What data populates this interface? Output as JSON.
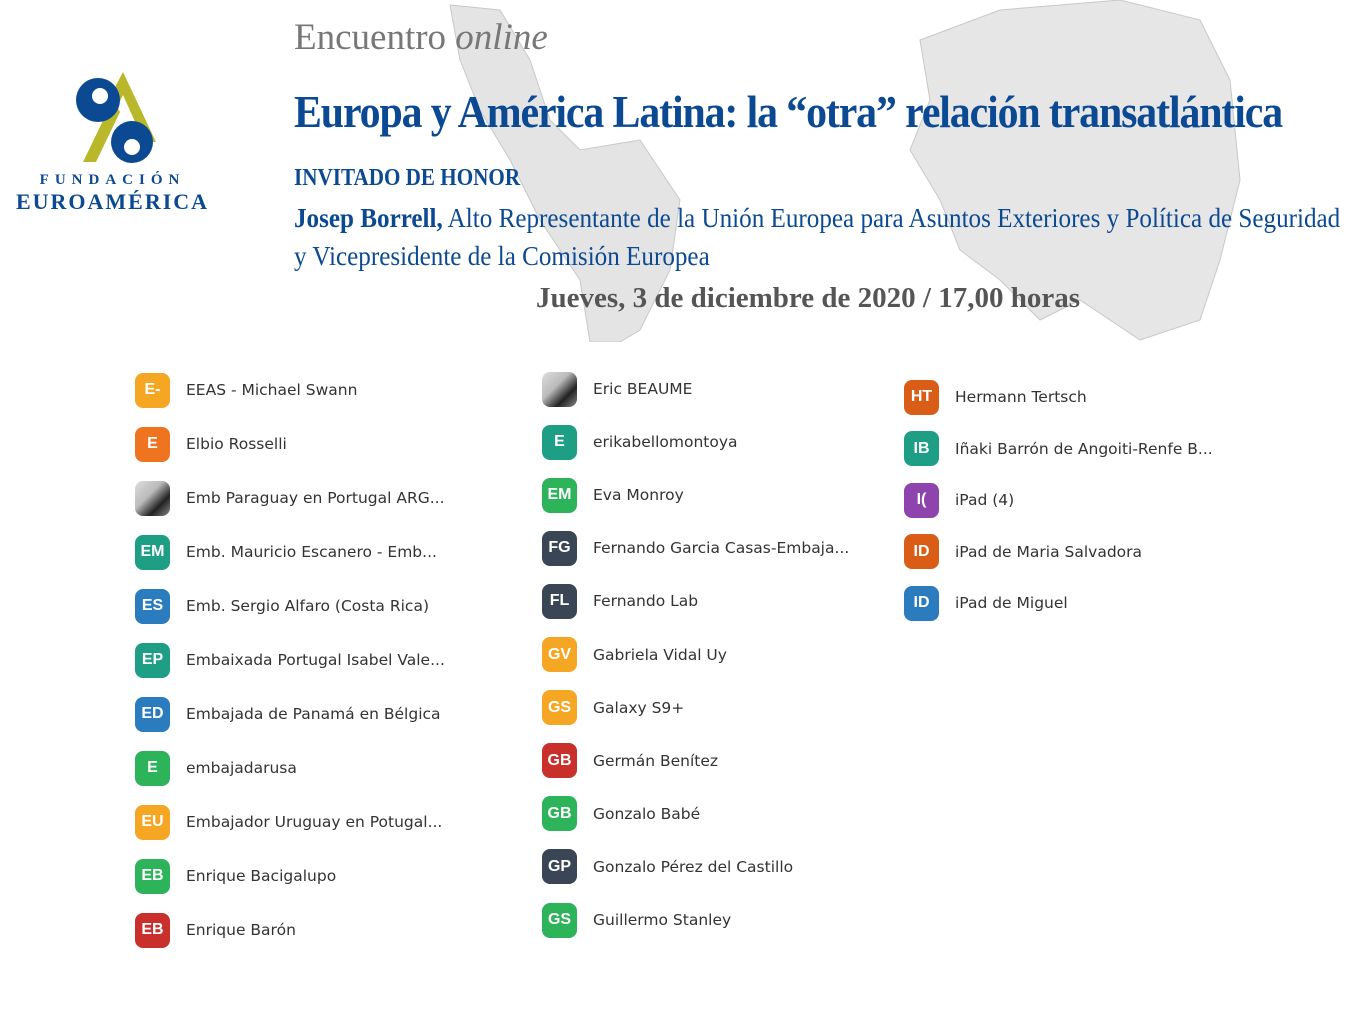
{
  "logo": {
    "line1": "FUNDACIÓN",
    "line2": "EUROAMÉRICA",
    "colors": {
      "blue": "#0b4a92",
      "olive": "#b8b82a"
    }
  },
  "header": {
    "event_type": "Encuentro",
    "event_mode": "online",
    "title": "Europa y América Latina: la “otra” relación transatlántica",
    "guest_label": "INVITADO DE HONOR",
    "guest_name": "Josep Borrell,",
    "guest_role": " Alto Representante de la Unión Europea para Asuntos Exteriores y Política de Seguridad y Vicepresidente de la Comisión Europea",
    "date": "Jueves, 3 de diciembre de 2020  /  17,00 horas"
  },
  "participants": [
    [
      {
        "initials": "E-",
        "name": "EEAS - Michael Swann",
        "color": "#f5a623"
      },
      {
        "initials": "E",
        "name": "Elbio Rosselli",
        "color": "#ee7420"
      },
      {
        "initials": "",
        "name": "Emb Paraguay en Portugal ARG...",
        "color": "photo"
      },
      {
        "initials": "EM",
        "name": "Emb. Mauricio Escanero - Emb...",
        "color": "#1f9e86"
      },
      {
        "initials": "ES",
        "name": "Emb. Sergio Alfaro (Costa Rica)",
        "color": "#2b7bbf"
      },
      {
        "initials": "EP",
        "name": "Embaixada Portugal Isabel Vale...",
        "color": "#1f9e86"
      },
      {
        "initials": "ED",
        "name": "Embajada de Panamá en Bélgica",
        "color": "#2b7bbf"
      },
      {
        "initials": "E",
        "name": "embajadarusa",
        "color": "#2db35a"
      },
      {
        "initials": "EU",
        "name": "Embajador Uruguay en Potugal...",
        "color": "#f5a623"
      },
      {
        "initials": "EB",
        "name": "Enrique Bacigalupo",
        "color": "#2db35a"
      },
      {
        "initials": "EB",
        "name": "Enrique Barón",
        "color": "#c9302c"
      }
    ],
    [
      {
        "initials": "",
        "name": "Eric BEAUME",
        "color": "photo"
      },
      {
        "initials": "E",
        "name": "erikabellomontoya",
        "color": "#1f9e86"
      },
      {
        "initials": "EM",
        "name": "Eva Monroy",
        "color": "#2db35a"
      },
      {
        "initials": "FG",
        "name": "Fernando Garcia Casas-Embaja...",
        "color": "#3a4656"
      },
      {
        "initials": "FL",
        "name": "Fernando Lab",
        "color": "#3a4656"
      },
      {
        "initials": "GV",
        "name": "Gabriela Vidal  Uy",
        "color": "#f5a623"
      },
      {
        "initials": "GS",
        "name": "Galaxy S9+",
        "color": "#f5a623"
      },
      {
        "initials": "GB",
        "name": "Germán Benítez",
        "color": "#c9302c"
      },
      {
        "initials": "GB",
        "name": "Gonzalo Babé",
        "color": "#2db35a"
      },
      {
        "initials": "GP",
        "name": "Gonzalo Pérez del Castillo",
        "color": "#3a4656"
      },
      {
        "initials": "GS",
        "name": "Guillermo Stanley",
        "color": "#2db35a"
      }
    ],
    [
      {
        "initials": "HT",
        "name": "Hermann Tertsch",
        "color": "#d95d17"
      },
      {
        "initials": "IB",
        "name": "Iñaki Barrón de Angoiti-Renfe B...",
        "color": "#1f9e86"
      },
      {
        "initials": "I(",
        "name": "iPad (4)",
        "color": "#8e44ad"
      },
      {
        "initials": "ID",
        "name": "iPad de Maria Salvadora",
        "color": "#d95d17"
      },
      {
        "initials": "ID",
        "name": "iPad de Miguel",
        "color": "#2b7bbf"
      }
    ]
  ]
}
